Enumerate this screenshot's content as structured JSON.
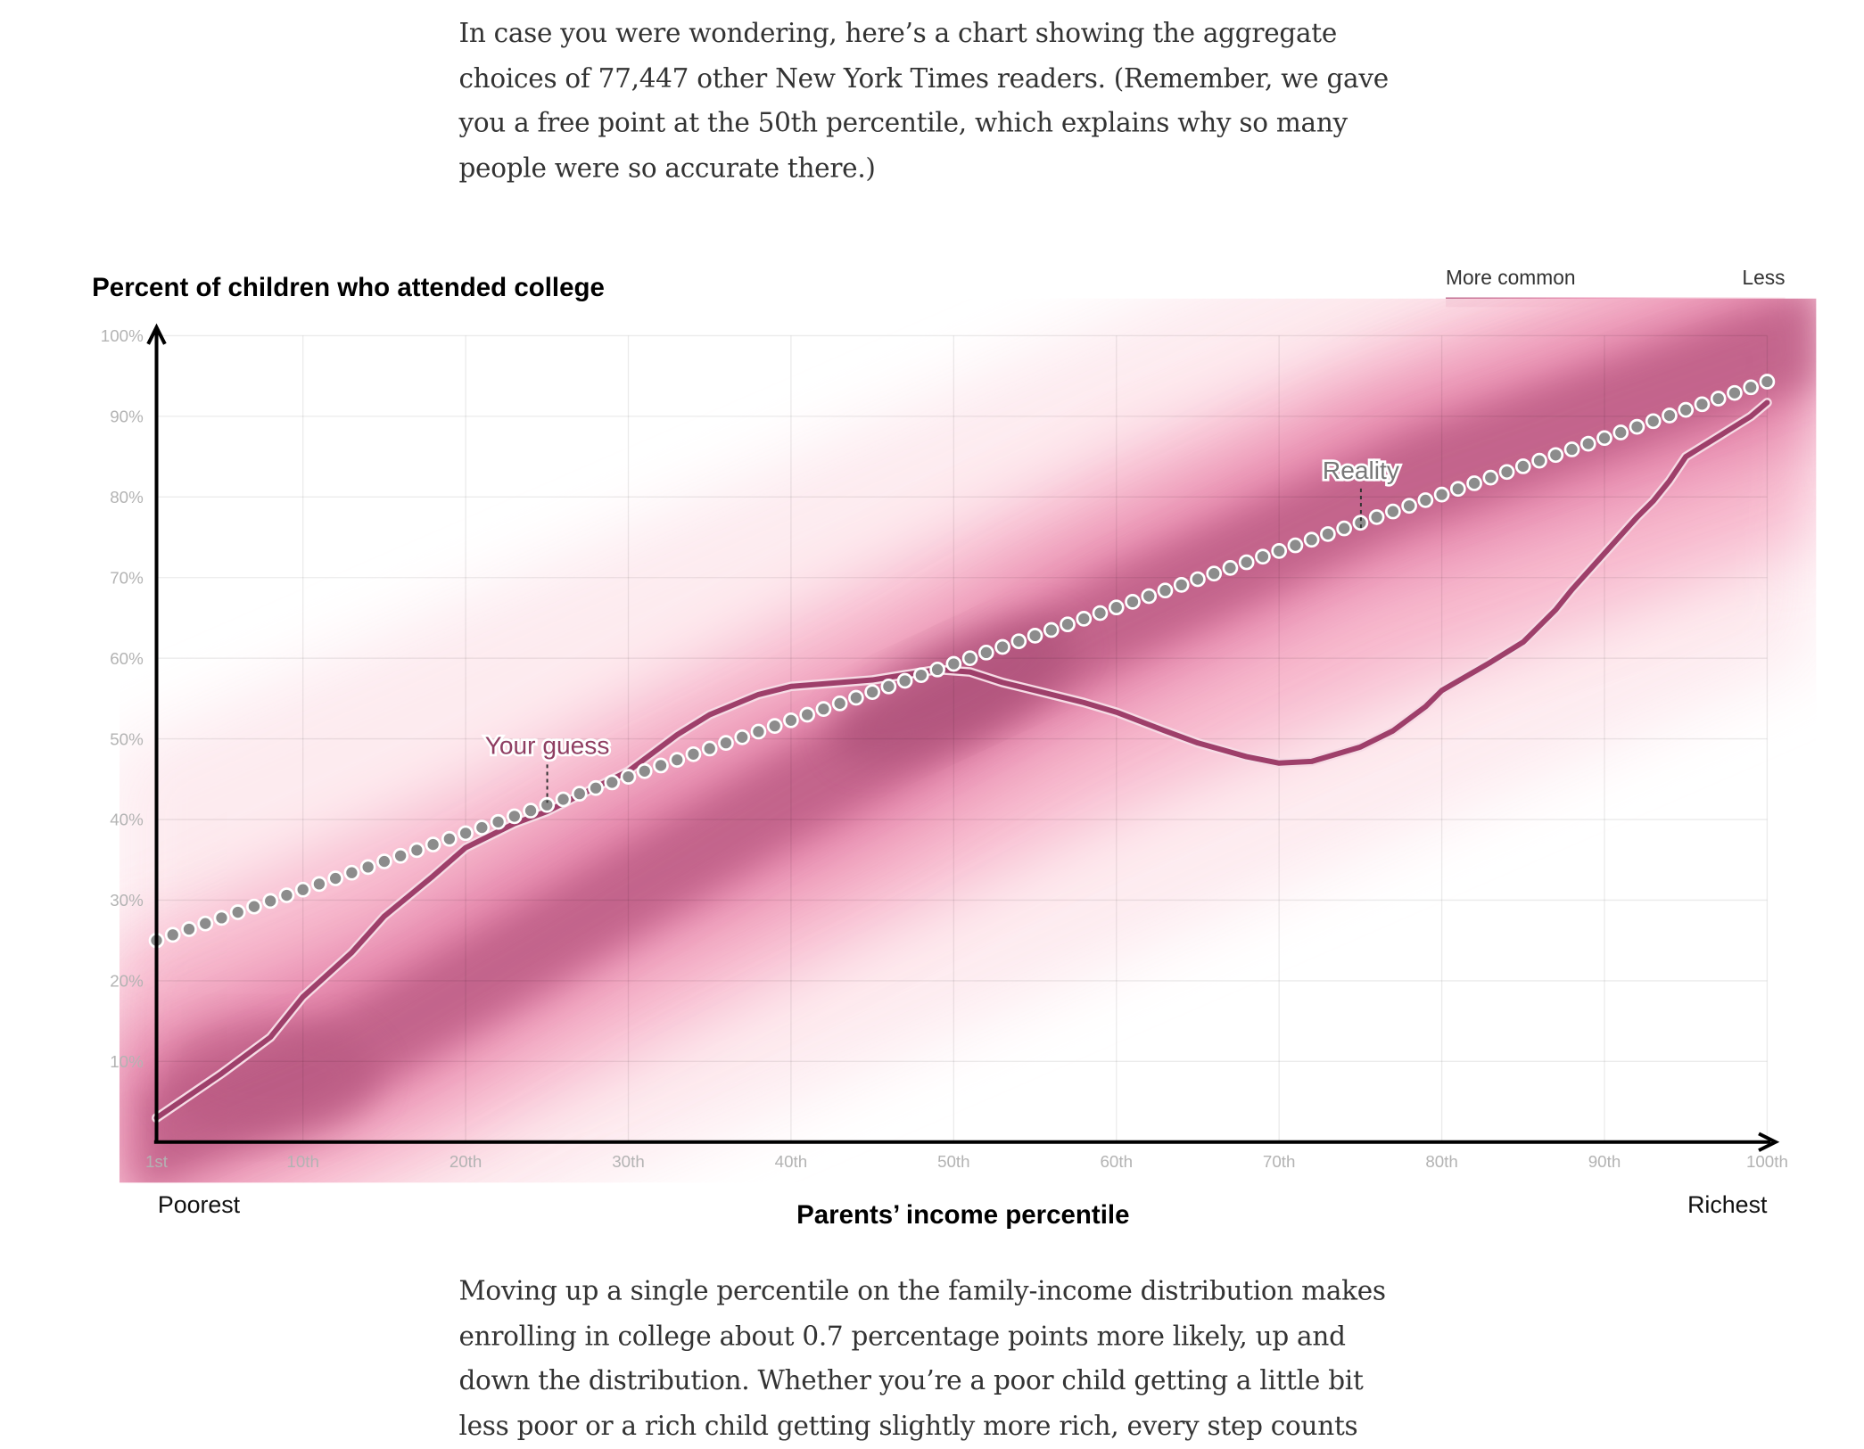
{
  "intro_paragraph": {
    "lines": [
      "In case you were wondering, here’s a chart showing the aggregate",
      "choices of 77,447 other New York Times readers. (Remember, we gave",
      "you a free point at the 50th percentile, which explains why so many",
      "people were so accurate there.)"
    ]
  },
  "outro_paragraph": {
    "lines": [
      "Moving up a single percentile on the family-income distribution makes",
      "enrolling in college about 0.7 percentage points more likely, up and",
      "down the distribution. Whether you’re a poor child getting a little bit",
      "less poor or a rich child getting slightly more rich, every step counts"
    ]
  },
  "chart_data": {
    "type": "line",
    "title": "Percent of children who attended college",
    "xlabel": "Parents’ income percentile",
    "x_end_labels": {
      "left": "Poorest",
      "right": "Richest"
    },
    "xlim": [
      1,
      100
    ],
    "ylim": [
      0,
      100
    ],
    "x_ticks": [
      {
        "v": 1,
        "label": "1st"
      },
      {
        "v": 10,
        "label": "10th"
      },
      {
        "v": 20,
        "label": "20th"
      },
      {
        "v": 30,
        "label": "30th"
      },
      {
        "v": 40,
        "label": "40th"
      },
      {
        "v": 50,
        "label": "50th"
      },
      {
        "v": 60,
        "label": "60th"
      },
      {
        "v": 70,
        "label": "70th"
      },
      {
        "v": 80,
        "label": "80th"
      },
      {
        "v": 90,
        "label": "90th"
      },
      {
        "v": 100,
        "label": "100th"
      }
    ],
    "y_ticks": [
      {
        "v": 10,
        "label": "10%"
      },
      {
        "v": 20,
        "label": "20%"
      },
      {
        "v": 30,
        "label": "30%"
      },
      {
        "v": 40,
        "label": "40%"
      },
      {
        "v": 50,
        "label": "50%"
      },
      {
        "v": 60,
        "label": "60%"
      },
      {
        "v": 70,
        "label": "70%"
      },
      {
        "v": 80,
        "label": "80%"
      },
      {
        "v": 90,
        "label": "90%"
      },
      {
        "v": 100,
        "label": "100%"
      }
    ],
    "grid": true,
    "legend": {
      "placement": "top-right",
      "more_label": "More common",
      "less_label": "Less",
      "colors": [
        "#b5577f",
        "#e68aae",
        "#fde6ec"
      ]
    },
    "series": [
      {
        "name": "Reality",
        "style": "dots",
        "color": "#8c8c8c",
        "start": {
          "x": 1,
          "y": 25
        },
        "slope_per_percentile": 0.7,
        "count": 100
      },
      {
        "name": "Your guess",
        "style": "line",
        "color": "#9e3f6a",
        "points": [
          [
            1,
            3
          ],
          [
            5,
            8.5
          ],
          [
            8,
            13
          ],
          [
            10,
            18
          ],
          [
            13,
            23.5
          ],
          [
            15,
            28
          ],
          [
            18,
            33
          ],
          [
            20,
            36.5
          ],
          [
            23,
            39.5
          ],
          [
            25,
            41
          ],
          [
            28,
            44
          ],
          [
            30,
            46
          ],
          [
            33,
            50.5
          ],
          [
            35,
            53
          ],
          [
            38,
            55.5
          ],
          [
            40,
            56.5
          ],
          [
            45,
            57.3
          ],
          [
            49,
            58.6
          ],
          [
            51,
            58.3
          ],
          [
            53,
            57
          ],
          [
            55,
            56
          ],
          [
            58,
            54.5
          ],
          [
            60,
            53.3
          ],
          [
            63,
            51
          ],
          [
            65,
            49.5
          ],
          [
            68,
            47.8
          ],
          [
            70,
            47
          ],
          [
            72,
            47.2
          ],
          [
            75,
            49
          ],
          [
            77,
            51
          ],
          [
            79,
            54
          ],
          [
            80,
            56
          ],
          [
            83,
            59.5
          ],
          [
            85,
            62
          ],
          [
            87,
            66
          ],
          [
            88,
            68.5
          ],
          [
            90,
            73
          ],
          [
            92,
            77.5
          ],
          [
            93,
            79.5
          ],
          [
            94,
            82
          ],
          [
            95,
            85
          ],
          [
            97,
            87.5
          ],
          [
            99,
            90
          ],
          [
            100,
            91.7
          ]
        ]
      }
    ],
    "annotations": [
      {
        "text": "Reality",
        "x": 75,
        "y": 75
      },
      {
        "text": "Your guess",
        "x": 25,
        "y": 41
      }
    ]
  }
}
